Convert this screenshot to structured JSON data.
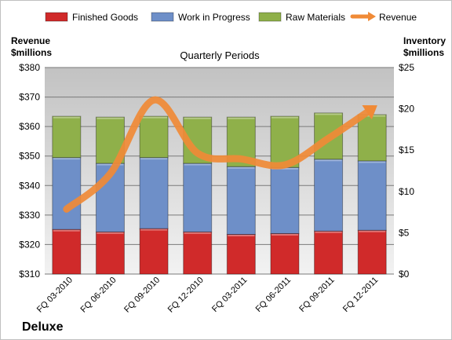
{
  "chart_data": {
    "type": "bar",
    "stacked": true,
    "title": "Quarterly Periods",
    "company": "Deluxe",
    "left_axis_label": [
      "Revenue",
      "$millions"
    ],
    "right_axis_label": [
      "Inventory",
      "$millions"
    ],
    "categories": [
      "FQ 03-2010",
      "FQ 06-2010",
      "FQ 09-2010",
      "FQ 12-2010",
      "FQ 03-2011",
      "FQ 06-2011",
      "FQ 09-2011",
      "FQ 12-2011"
    ],
    "left_ticks": [
      "$310",
      "$320",
      "$330",
      "$340",
      "$350",
      "$360",
      "$370",
      "$380"
    ],
    "right_ticks": [
      "$0",
      "$5",
      "$10",
      "$15",
      "$20",
      "$25"
    ],
    "left_ylim": [
      310,
      380
    ],
    "right_ylim": [
      0,
      25
    ],
    "legend_position": "top",
    "grid": true,
    "series": [
      {
        "name": "Finished Goods",
        "axis": "right",
        "color": "#d02a2a",
        "values": [
          5.4,
          5.1,
          5.5,
          5.1,
          4.8,
          4.9,
          5.2,
          5.3
        ]
      },
      {
        "name": "Work in Progress",
        "axis": "right",
        "color": "#6e8fc8",
        "values": [
          8.7,
          8.3,
          8.6,
          8.3,
          8.2,
          8.0,
          8.7,
          8.4
        ]
      },
      {
        "name": "Raw Materials",
        "axis": "right",
        "color": "#8fb04a",
        "values": [
          5.0,
          5.6,
          5.0,
          5.6,
          6.0,
          6.2,
          5.6,
          5.6
        ]
      },
      {
        "name": "Revenue",
        "axis": "left",
        "type": "line",
        "color": "#f08a36",
        "values": [
          332,
          344,
          369,
          351,
          349,
          347,
          356,
          366
        ]
      }
    ]
  }
}
